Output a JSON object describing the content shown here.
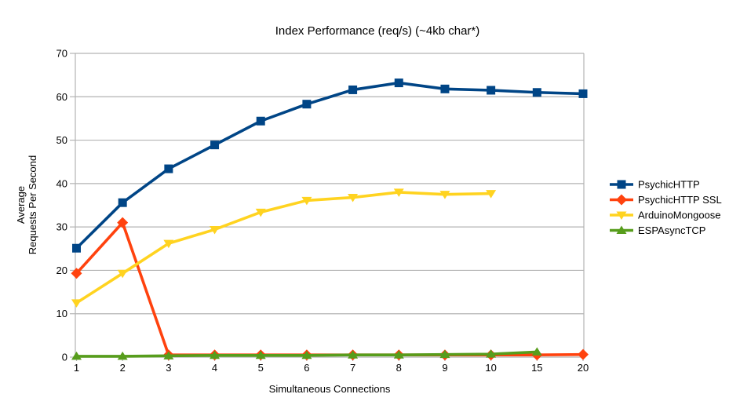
{
  "title": "Index Performance (req/s) (~4kb char*)",
  "colors": {
    "grid": "#b3b3b3",
    "axis": "#b3b3b3",
    "text": "#000000",
    "background": "#ffffff"
  },
  "chart_data": {
    "type": "line",
    "title": "Index Performance (req/s) (~4kb char*)",
    "xlabel": "Simultaneous Connections",
    "ylabel": "Average Requests Per Second",
    "ylabel_lines": [
      "Average",
      "Requests Per Second"
    ],
    "categories": [
      "1",
      "2",
      "3",
      "4",
      "5",
      "6",
      "7",
      "8",
      "9",
      "10",
      "15",
      "20"
    ],
    "ylim": [
      0,
      70
    ],
    "ytick_interval": 10,
    "yticks": [
      "0",
      "10",
      "20",
      "30",
      "40",
      "50",
      "60",
      "70"
    ],
    "grid": "horizontal",
    "legend_position": "right",
    "series": [
      {
        "name": "PsychicHTTP",
        "color": "#004586",
        "marker": "square",
        "values": [
          25.1,
          35.6,
          43.4,
          48.9,
          54.4,
          58.3,
          61.6,
          63.2,
          61.8,
          61.5,
          61.0,
          60.7
        ]
      },
      {
        "name": "PsychicHTTP SSL",
        "color": "#ff420e",
        "marker": "diamond",
        "values": [
          19.3,
          31.0,
          0.5,
          0.5,
          0.5,
          0.5,
          0.5,
          0.5,
          0.5,
          0.5,
          0.5,
          0.6
        ]
      },
      {
        "name": "ArduinoMongoose",
        "color": "#ffd320",
        "marker": "triangle-down",
        "values": [
          12.5,
          19.3,
          26.2,
          29.4,
          33.4,
          36.1,
          36.8,
          38.0,
          37.5,
          37.7,
          null,
          null
        ]
      },
      {
        "name": "ESPAsyncTCP",
        "color": "#579d1c",
        "marker": "triangle-up",
        "values": [
          0.2,
          0.2,
          0.3,
          0.4,
          0.4,
          0.4,
          0.5,
          0.5,
          0.6,
          0.7,
          1.2,
          null
        ]
      }
    ]
  }
}
